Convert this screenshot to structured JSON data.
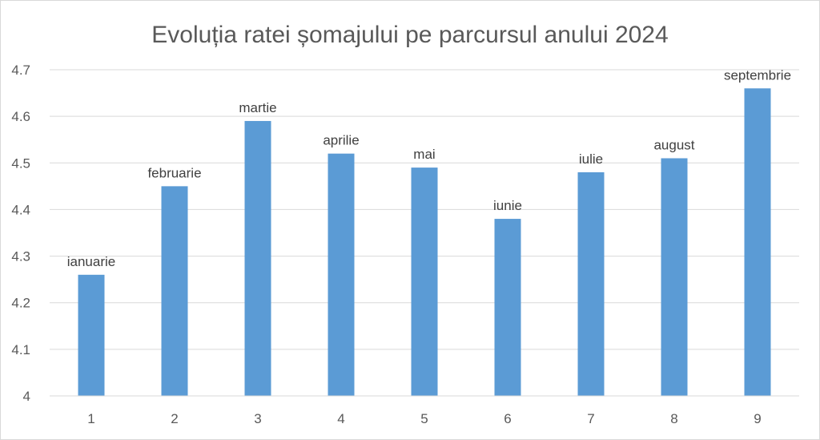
{
  "chart_data": {
    "type": "bar",
    "title": "Evoluția ratei șomajului  pe parcursul anului 2024",
    "xlabel": "",
    "ylabel": "",
    "categories": [
      "1",
      "2",
      "3",
      "4",
      "5",
      "6",
      "7",
      "8",
      "9"
    ],
    "values": [
      4.26,
      4.45,
      4.59,
      4.52,
      4.49,
      4.38,
      4.48,
      4.51,
      4.66
    ],
    "data_labels": [
      "ianuarie",
      "februarie",
      "martie",
      "aprilie",
      "mai",
      "iunie",
      "iulie",
      "august",
      "septembrie"
    ],
    "ylim": [
      4,
      4.7
    ],
    "yticks": [
      "4",
      "4.1",
      "4.2",
      "4.3",
      "4.4",
      "4.5",
      "4.6",
      "4.7"
    ],
    "grid": true,
    "legend": "none",
    "bar_color": "#5b9bd5",
    "grid_color": "#d9d9d9"
  }
}
